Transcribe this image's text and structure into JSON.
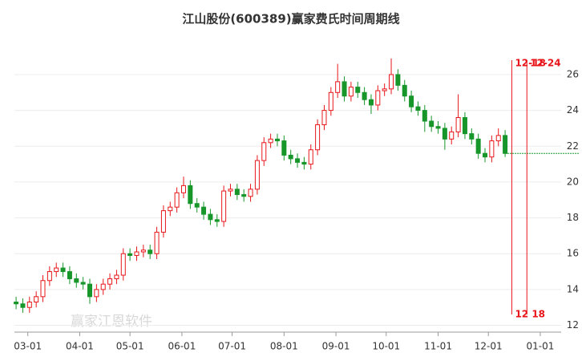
{
  "chart_data": {
    "type": "candlestick",
    "title": "江山股份(600389)赢家费氏时间周期线",
    "watermark": "赢家江恩软件",
    "up_color": "#e8161b",
    "down_color": "#17962a",
    "xlim": [
      51,
      388
    ],
    "ylim": [
      11.8,
      27.7
    ],
    "xticks": [
      {
        "value": 59,
        "label": "03-01"
      },
      {
        "value": 90,
        "label": "04-01"
      },
      {
        "value": 120,
        "label": "05-01"
      },
      {
        "value": 151,
        "label": "06-01"
      },
      {
        "value": 181,
        "label": "07-01"
      },
      {
        "value": 212,
        "label": "08-01"
      },
      {
        "value": 243,
        "label": "09-01"
      },
      {
        "value": 273,
        "label": "10-01"
      },
      {
        "value": 304,
        "label": "11-01"
      },
      {
        "value": 334,
        "label": "12-01"
      },
      {
        "value": 365,
        "label": "01-01"
      }
    ],
    "yticks": [
      12,
      14,
      16,
      18,
      20,
      22,
      24,
      26
    ],
    "grid": true,
    "x": [
      52,
      56,
      60,
      64,
      68,
      72,
      76,
      80,
      84,
      88,
      92,
      96,
      100,
      104,
      108,
      112,
      116,
      120,
      124,
      128,
      132,
      136,
      140,
      144,
      148,
      152,
      156,
      160,
      164,
      168,
      172,
      176,
      180,
      184,
      188,
      192,
      196,
      200,
      204,
      208,
      212,
      216,
      220,
      224,
      228,
      232,
      236,
      240,
      244,
      248,
      252,
      256,
      260,
      264,
      268,
      272,
      276,
      280,
      284,
      288,
      292,
      296,
      300,
      304,
      308,
      312,
      316,
      320,
      324,
      328,
      332,
      336,
      340,
      344
    ],
    "open": [
      13.3,
      13.2,
      13.0,
      13.3,
      13.6,
      14.5,
      15.0,
      15.2,
      15.0,
      14.6,
      14.4,
      14.3,
      13.6,
      14.0,
      14.3,
      14.6,
      14.8,
      16.0,
      15.9,
      16.1,
      16.2,
      16.0,
      17.2,
      18.4,
      18.6,
      19.4,
      19.8,
      18.8,
      18.6,
      18.2,
      17.9,
      17.8,
      19.5,
      19.6,
      19.3,
      19.2,
      19.6,
      21.2,
      22.2,
      22.4,
      22.3,
      21.5,
      21.3,
      21.1,
      21.0,
      21.8,
      23.2,
      24.0,
      25.0,
      25.6,
      24.8,
      25.3,
      25.0,
      24.6,
      24.3,
      25.1,
      25.2,
      26.0,
      25.4,
      24.8,
      24.2,
      24.0,
      23.4,
      23.1,
      23.0,
      22.4,
      22.8,
      23.6,
      22.7,
      22.4,
      21.6,
      21.4,
      22.3,
      22.6
    ],
    "high": [
      13.6,
      13.5,
      13.6,
      13.9,
      14.8,
      15.3,
      15.5,
      15.5,
      15.3,
      14.9,
      14.7,
      14.6,
      14.3,
      14.6,
      14.9,
      15.1,
      16.3,
      16.3,
      16.4,
      16.5,
      16.5,
      17.5,
      18.7,
      18.9,
      19.7,
      20.3,
      20.1,
      19.1,
      18.9,
      18.5,
      18.2,
      19.8,
      19.9,
      19.9,
      19.6,
      19.9,
      21.5,
      22.5,
      22.7,
      22.7,
      22.6,
      21.8,
      21.6,
      21.4,
      22.1,
      23.5,
      24.3,
      25.3,
      26.6,
      25.9,
      25.6,
      25.6,
      25.3,
      24.9,
      25.4,
      25.5,
      26.9,
      26.3,
      25.7,
      25.1,
      24.5,
      24.3,
      23.7,
      23.4,
      23.3,
      23.1,
      24.9,
      23.9,
      23.0,
      22.7,
      21.9,
      22.6,
      23.0,
      22.9
    ],
    "low": [
      12.9,
      12.7,
      12.7,
      13.0,
      13.3,
      14.2,
      14.7,
      14.7,
      14.3,
      14.1,
      14.0,
      13.2,
      13.3,
      13.7,
      14.0,
      14.3,
      14.5,
      15.6,
      15.6,
      15.8,
      15.7,
      15.7,
      16.9,
      18.1,
      18.3,
      19.1,
      18.5,
      18.3,
      17.9,
      17.6,
      17.5,
      17.5,
      19.2,
      19.0,
      18.9,
      18.9,
      19.3,
      20.9,
      21.9,
      22.0,
      21.2,
      21.0,
      20.8,
      20.7,
      20.7,
      21.5,
      22.9,
      23.7,
      24.7,
      24.5,
      24.5,
      24.7,
      24.3,
      23.8,
      24.0,
      24.8,
      24.9,
      25.1,
      24.5,
      23.9,
      23.7,
      22.8,
      22.8,
      22.7,
      21.8,
      22.1,
      22.5,
      22.4,
      22.1,
      21.3,
      21.1,
      21.1,
      22.0,
      21.4
    ],
    "close": [
      13.2,
      13.0,
      13.3,
      13.6,
      14.5,
      15.0,
      15.2,
      15.0,
      14.6,
      14.4,
      14.3,
      13.6,
      14.0,
      14.3,
      14.6,
      14.8,
      16.0,
      15.9,
      16.1,
      16.2,
      16.0,
      17.2,
      18.4,
      18.6,
      19.4,
      19.8,
      18.8,
      18.6,
      18.2,
      17.9,
      17.8,
      19.5,
      19.6,
      19.3,
      19.2,
      19.6,
      21.2,
      22.2,
      22.4,
      22.3,
      21.5,
      21.3,
      21.1,
      21.0,
      21.8,
      23.2,
      24.0,
      25.0,
      25.6,
      24.8,
      25.3,
      25.0,
      24.6,
      24.3,
      25.1,
      25.2,
      26.0,
      25.4,
      24.8,
      24.2,
      24.0,
      23.4,
      23.1,
      23.0,
      22.4,
      22.8,
      23.6,
      22.7,
      22.4,
      21.6,
      21.4,
      22.3,
      22.6,
      21.6
    ],
    "reference_line": {
      "value": 21.6,
      "color": "#17962a"
    },
    "cycle_lines": [
      {
        "x": 348,
        "label": "12-18",
        "bottom_label": "12 18"
      },
      {
        "x": 357,
        "label": "12-24"
      }
    ],
    "cycle_color": "#e8161b"
  }
}
